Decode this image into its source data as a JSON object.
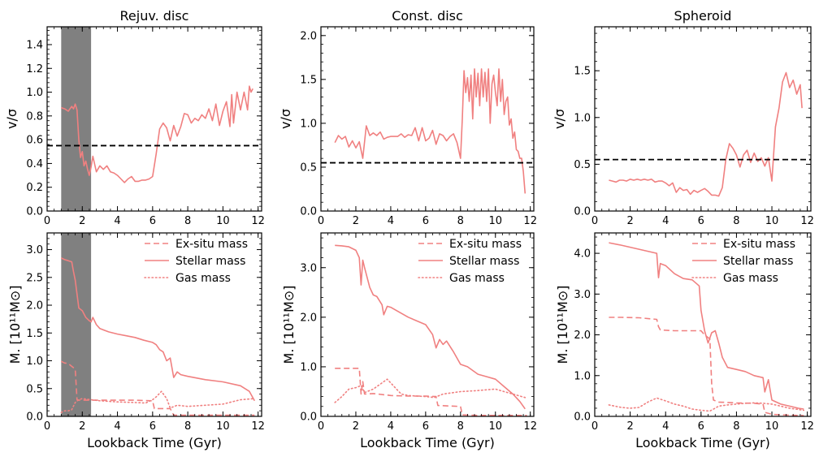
{
  "chart_data": [
    {
      "type": "line",
      "title": "Rejuv. disc",
      "xlabel": "",
      "ylabel": "v/σ",
      "xlim": [
        0,
        12.2
      ],
      "ylim": [
        0,
        1.55
      ],
      "xticks": [
        "0",
        "2",
        "4",
        "6",
        "8",
        "10",
        "12"
      ],
      "yticks": [
        "0.0",
        "0.2",
        "0.4",
        "0.6",
        "0.8",
        "1.0",
        "1.2",
        "1.4"
      ],
      "shaded_span": [
        0.8,
        2.5
      ],
      "hline": 0.55,
      "grid": false,
      "series": [
        {
          "x": [
            0.8,
            1.0,
            1.2,
            1.4,
            1.5,
            1.6,
            1.7,
            1.8,
            1.9,
            2.0,
            2.1,
            2.2,
            2.3,
            2.4,
            2.5,
            2.6,
            2.8,
            3.0,
            3.2,
            3.4,
            3.6,
            3.8,
            4.0,
            4.2,
            4.4,
            4.6,
            4.8,
            5.0,
            5.2,
            5.4,
            5.6,
            5.8,
            6.0,
            6.2,
            6.4,
            6.6,
            6.8,
            7.0,
            7.2,
            7.4,
            7.6,
            7.8,
            8.0,
            8.2,
            8.4,
            8.6,
            8.8,
            9.0,
            9.2,
            9.4,
            9.6,
            9.8,
            10.0,
            10.2,
            10.4,
            10.5,
            10.6,
            10.8,
            11.0,
            11.2,
            11.4,
            11.5,
            11.6,
            11.7
          ],
          "y": [
            0.87,
            0.86,
            0.84,
            0.88,
            0.86,
            0.9,
            0.85,
            0.6,
            0.45,
            0.5,
            0.38,
            0.42,
            0.35,
            0.3,
            0.37,
            0.46,
            0.33,
            0.38,
            0.35,
            0.38,
            0.33,
            0.32,
            0.3,
            0.27,
            0.24,
            0.27,
            0.29,
            0.25,
            0.25,
            0.26,
            0.26,
            0.27,
            0.29,
            0.48,
            0.69,
            0.74,
            0.7,
            0.59,
            0.72,
            0.63,
            0.71,
            0.82,
            0.81,
            0.74,
            0.78,
            0.76,
            0.81,
            0.78,
            0.86,
            0.76,
            0.9,
            0.72,
            0.84,
            0.92,
            0.71,
            0.98,
            0.74,
            1.0,
            0.85,
            1.0,
            0.85,
            1.05,
            1.0,
            1.03
          ]
        }
      ]
    },
    {
      "type": "line",
      "title": "Const. disc",
      "xlabel": "",
      "ylabel": "v/σ",
      "xlim": [
        0,
        12.2
      ],
      "ylim": [
        0,
        2.1
      ],
      "xticks": [
        "0",
        "2",
        "4",
        "6",
        "8",
        "10",
        "12"
      ],
      "yticks": [
        "0.0",
        "0.5",
        "1.0",
        "1.5",
        "2.0"
      ],
      "hline": 0.55,
      "grid": false,
      "series": [
        {
          "x": [
            0.8,
            1.0,
            1.2,
            1.4,
            1.6,
            1.8,
            2.0,
            2.2,
            2.4,
            2.6,
            2.8,
            3.0,
            3.2,
            3.4,
            3.6,
            3.8,
            4.0,
            4.2,
            4.4,
            4.6,
            4.8,
            5.0,
            5.2,
            5.4,
            5.6,
            5.8,
            6.0,
            6.2,
            6.4,
            6.6,
            6.8,
            7.0,
            7.2,
            7.4,
            7.6,
            7.8,
            8.0,
            8.1,
            8.2,
            8.3,
            8.4,
            8.5,
            8.6,
            8.7,
            8.8,
            8.9,
            9.0,
            9.1,
            9.2,
            9.3,
            9.4,
            9.5,
            9.6,
            9.7,
            9.8,
            9.9,
            10.0,
            10.1,
            10.2,
            10.3,
            10.4,
            10.5,
            10.6,
            10.7,
            10.8,
            10.9,
            11.0,
            11.1,
            11.2,
            11.3,
            11.4,
            11.5,
            11.6,
            11.7
          ],
          "y": [
            0.78,
            0.86,
            0.82,
            0.85,
            0.73,
            0.8,
            0.72,
            0.79,
            0.6,
            0.97,
            0.86,
            0.89,
            0.86,
            0.9,
            0.82,
            0.84,
            0.85,
            0.85,
            0.85,
            0.88,
            0.84,
            0.87,
            0.86,
            0.95,
            0.8,
            0.95,
            0.8,
            0.83,
            0.92,
            0.76,
            0.88,
            0.86,
            0.8,
            0.85,
            0.88,
            0.78,
            0.6,
            1.05,
            1.6,
            1.35,
            1.52,
            1.25,
            1.55,
            1.05,
            1.62,
            1.3,
            1.57,
            1.2,
            1.62,
            1.3,
            1.58,
            1.25,
            1.62,
            1.0,
            1.45,
            1.55,
            1.35,
            1.2,
            1.62,
            1.25,
            1.5,
            1.1,
            1.25,
            1.3,
            0.98,
            1.05,
            0.83,
            0.9,
            0.7,
            0.68,
            0.6,
            0.6,
            0.45,
            0.2
          ]
        }
      ]
    },
    {
      "type": "line",
      "title": "Spheroid",
      "xlabel": "",
      "ylabel": "v/σ",
      "xlim": [
        0,
        12.2
      ],
      "ylim": [
        0,
        1.97
      ],
      "xticks": [
        "0",
        "2",
        "4",
        "6",
        "8",
        "10",
        "12"
      ],
      "yticks": [
        "0.0",
        "0.5",
        "1.0",
        "1.5"
      ],
      "hline": 0.55,
      "grid": false,
      "series": [
        {
          "x": [
            0.8,
            1.0,
            1.2,
            1.4,
            1.6,
            1.8,
            2.0,
            2.2,
            2.4,
            2.6,
            2.8,
            3.0,
            3.2,
            3.4,
            3.6,
            3.8,
            4.0,
            4.2,
            4.4,
            4.6,
            4.8,
            5.0,
            5.2,
            5.4,
            5.6,
            5.8,
            6.0,
            6.2,
            6.4,
            6.6,
            6.8,
            7.0,
            7.2,
            7.4,
            7.6,
            7.8,
            8.0,
            8.2,
            8.4,
            8.6,
            8.8,
            9.0,
            9.2,
            9.4,
            9.6,
            9.8,
            10.0,
            10.2,
            10.4,
            10.6,
            10.8,
            11.0,
            11.2,
            11.4,
            11.6,
            11.7
          ],
          "y": [
            0.33,
            0.32,
            0.31,
            0.33,
            0.33,
            0.32,
            0.34,
            0.33,
            0.34,
            0.33,
            0.34,
            0.33,
            0.34,
            0.31,
            0.32,
            0.32,
            0.3,
            0.27,
            0.3,
            0.2,
            0.25,
            0.22,
            0.23,
            0.18,
            0.22,
            0.2,
            0.22,
            0.24,
            0.21,
            0.17,
            0.17,
            0.16,
            0.25,
            0.55,
            0.72,
            0.67,
            0.6,
            0.47,
            0.6,
            0.65,
            0.52,
            0.62,
            0.53,
            0.57,
            0.48,
            0.57,
            0.32,
            0.9,
            1.1,
            1.38,
            1.48,
            1.32,
            1.4,
            1.25,
            1.35,
            1.1
          ]
        }
      ]
    },
    {
      "type": "line",
      "title": "",
      "xlabel": "Lookback Time (Gyr)",
      "ylabel": "M. [10¹¹M⊙]",
      "xlim": [
        0,
        12.2
      ],
      "ylim": [
        0,
        3.3
      ],
      "xticks": [
        "0",
        "2",
        "4",
        "6",
        "8",
        "10",
        "12"
      ],
      "yticks": [
        "0.0",
        "0.5",
        "1.0",
        "1.5",
        "2.0",
        "2.5",
        "3.0"
      ],
      "shaded_span": [
        0.8,
        2.5
      ],
      "legend": "top-right",
      "grid": false,
      "series": [
        {
          "name": "Ex-situ mass",
          "style": "dashed",
          "x": [
            0.8,
            1.0,
            1.2,
            1.4,
            1.6,
            1.7,
            1.8,
            2.0,
            2.5,
            3.0,
            4.0,
            5.0,
            6.0,
            6.1,
            6.2,
            6.5,
            7.0,
            7.2,
            7.4,
            8.0,
            9.0,
            10.0,
            11.0,
            11.8
          ],
          "y": [
            0.99,
            0.96,
            0.95,
            0.9,
            0.85,
            0.3,
            0.29,
            0.29,
            0.29,
            0.29,
            0.29,
            0.29,
            0.28,
            0.14,
            0.14,
            0.14,
            0.14,
            0.02,
            0.02,
            0.02,
            0.02,
            0.02,
            0.02,
            0.02
          ]
        },
        {
          "name": "Stellar mass",
          "style": "solid",
          "x": [
            0.8,
            1.0,
            1.2,
            1.4,
            1.5,
            1.6,
            1.8,
            2.0,
            2.2,
            2.4,
            2.5,
            2.6,
            2.8,
            3.0,
            3.5,
            4.0,
            4.5,
            5.0,
            5.5,
            6.0,
            6.2,
            6.4,
            6.6,
            6.8,
            7.0,
            7.2,
            7.4,
            7.6,
            8.0,
            9.0,
            10.0,
            11.0,
            11.5,
            11.8
          ],
          "y": [
            2.85,
            2.82,
            2.8,
            2.78,
            2.6,
            2.45,
            1.95,
            1.9,
            1.78,
            1.72,
            1.7,
            1.78,
            1.65,
            1.58,
            1.52,
            1.48,
            1.45,
            1.42,
            1.37,
            1.33,
            1.29,
            1.2,
            1.16,
            1.0,
            1.05,
            0.7,
            0.8,
            0.75,
            0.72,
            0.66,
            0.62,
            0.55,
            0.45,
            0.28
          ]
        },
        {
          "name": "Gas mass",
          "style": "dotted",
          "x": [
            0.8,
            1.0,
            1.2,
            1.4,
            1.6,
            1.8,
            2.0,
            2.5,
            3.0,
            4.0,
            5.0,
            5.6,
            6.0,
            6.2,
            6.5,
            6.8,
            7.0,
            7.4,
            8.0,
            9.0,
            10.0,
            11.0,
            11.8
          ],
          "y": [
            0.07,
            0.1,
            0.1,
            0.12,
            0.25,
            0.3,
            0.32,
            0.3,
            0.28,
            0.26,
            0.25,
            0.24,
            0.3,
            0.35,
            0.45,
            0.32,
            0.15,
            0.2,
            0.18,
            0.2,
            0.22,
            0.3,
            0.32
          ]
        }
      ]
    },
    {
      "type": "line",
      "title": "",
      "xlabel": "Lookback Time (Gyr)",
      "ylabel": "M. [10¹¹M⊙]",
      "xlim": [
        0,
        12.2
      ],
      "ylim": [
        0,
        3.7
      ],
      "xticks": [
        "0",
        "2",
        "4",
        "6",
        "8",
        "10",
        "12"
      ],
      "yticks": [
        "0.0",
        "1.0",
        "2.0",
        "3.0"
      ],
      "legend": "top-right",
      "grid": false,
      "series": [
        {
          "name": "Ex-situ mass",
          "style": "dashed",
          "x": [
            0.8,
            1.5,
            2.2,
            2.3,
            2.4,
            2.5,
            3.0,
            4.0,
            5.0,
            6.0,
            6.6,
            6.7,
            8.0,
            8.1,
            9.0,
            10.0,
            11.0,
            11.8
          ],
          "y": [
            0.97,
            0.97,
            0.97,
            0.45,
            0.7,
            0.45,
            0.46,
            0.42,
            0.41,
            0.41,
            0.4,
            0.22,
            0.2,
            0.03,
            0.02,
            0.02,
            0.02,
            0.02
          ]
        },
        {
          "name": "Stellar mass",
          "style": "solid",
          "x": [
            0.8,
            1.2,
            1.6,
            2.0,
            2.2,
            2.3,
            2.4,
            2.5,
            2.8,
            3.0,
            3.2,
            3.5,
            3.6,
            3.8,
            4.0,
            5.0,
            6.0,
            6.4,
            6.6,
            6.8,
            7.0,
            7.2,
            7.6,
            8.0,
            8.4,
            9.0,
            9.5,
            10.0,
            10.5,
            11.0,
            11.4,
            11.7
          ],
          "y": [
            3.45,
            3.44,
            3.42,
            3.35,
            3.2,
            2.65,
            3.15,
            3.0,
            2.6,
            2.45,
            2.42,
            2.25,
            2.05,
            2.22,
            2.2,
            2.0,
            1.85,
            1.65,
            1.38,
            1.55,
            1.45,
            1.52,
            1.3,
            1.05,
            1.0,
            0.85,
            0.8,
            0.75,
            0.6,
            0.45,
            0.3,
            0.15
          ]
        },
        {
          "name": "Gas mass",
          "style": "dotted",
          "x": [
            0.8,
            1.2,
            1.6,
            2.0,
            2.3,
            2.5,
            3.0,
            3.4,
            3.8,
            4.2,
            4.6,
            5.0,
            6.0,
            6.5,
            7.0,
            8.0,
            9.0,
            10.0,
            10.5,
            11.0,
            11.7
          ],
          "y": [
            0.28,
            0.4,
            0.55,
            0.58,
            0.62,
            0.48,
            0.55,
            0.65,
            0.75,
            0.6,
            0.45,
            0.42,
            0.4,
            0.38,
            0.45,
            0.5,
            0.52,
            0.55,
            0.5,
            0.45,
            0.38
          ]
        }
      ]
    },
    {
      "type": "line",
      "title": "",
      "xlabel": "Lookback Time (Gyr)",
      "ylabel": "M. [10¹¹M⊙]",
      "xlim": [
        0,
        12.2
      ],
      "ylim": [
        0,
        4.5
      ],
      "xticks": [
        "0",
        "2",
        "4",
        "6",
        "8",
        "10",
        "12"
      ],
      "yticks": [
        "0.0",
        "1.0",
        "2.0",
        "3.0",
        "4.0"
      ],
      "legend": "top-right",
      "grid": false,
      "series": [
        {
          "name": "Ex-situ mass",
          "style": "dashed",
          "x": [
            0.8,
            1.5,
            2.5,
            3.5,
            3.6,
            3.7,
            4.5,
            5.5,
            6.0,
            6.2,
            6.5,
            6.6,
            6.7,
            7.0,
            8.0,
            9.0,
            9.5,
            9.6,
            10.0,
            11.0,
            11.8
          ],
          "y": [
            2.43,
            2.43,
            2.42,
            2.38,
            2.2,
            2.12,
            2.1,
            2.1,
            2.1,
            2.0,
            1.9,
            0.8,
            0.4,
            0.35,
            0.33,
            0.32,
            0.3,
            0.1,
            0.05,
            0.03,
            0.02
          ]
        },
        {
          "name": "Stellar mass",
          "style": "solid",
          "x": [
            0.8,
            1.5,
            2.5,
            3.0,
            3.5,
            3.6,
            3.7,
            4.0,
            4.5,
            5.0,
            5.5,
            5.9,
            6.0,
            6.2,
            6.4,
            6.6,
            6.8,
            7.0,
            7.2,
            7.5,
            8.0,
            8.5,
            9.0,
            9.5,
            9.6,
            9.8,
            10.0,
            10.5,
            11.0,
            11.5,
            11.8
          ],
          "y": [
            4.26,
            4.2,
            4.1,
            4.05,
            4.0,
            3.4,
            3.75,
            3.7,
            3.5,
            3.38,
            3.35,
            3.2,
            2.6,
            2.1,
            1.8,
            2.05,
            2.1,
            1.8,
            1.45,
            1.2,
            1.15,
            1.1,
            1.0,
            0.95,
            0.6,
            0.9,
            0.4,
            0.3,
            0.25,
            0.2,
            0.18
          ]
        },
        {
          "name": "Gas mass",
          "style": "dotted",
          "x": [
            0.8,
            1.5,
            2.0,
            2.5,
            3.0,
            3.5,
            4.0,
            4.5,
            5.0,
            5.5,
            6.0,
            6.5,
            7.0,
            7.5,
            8.0,
            8.5,
            9.0,
            9.5,
            10.0,
            10.5,
            11.0,
            11.8
          ],
          "y": [
            0.28,
            0.22,
            0.2,
            0.22,
            0.35,
            0.45,
            0.38,
            0.3,
            0.25,
            0.18,
            0.15,
            0.13,
            0.25,
            0.28,
            0.3,
            0.32,
            0.33,
            0.32,
            0.3,
            0.25,
            0.2,
            0.15
          ]
        }
      ]
    }
  ]
}
